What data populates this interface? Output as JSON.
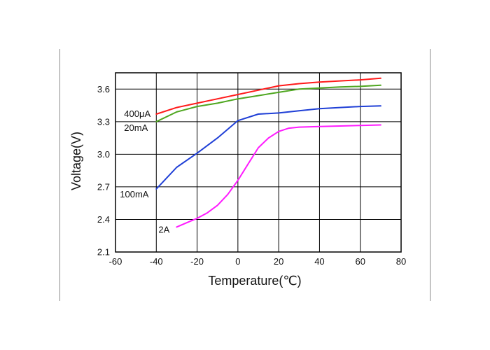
{
  "chart_data": {
    "type": "line",
    "xlabel": "Temperature(℃)",
    "ylabel": "Voltage(V)",
    "xlim": [
      -60,
      80
    ],
    "ylim": [
      2.1,
      3.75
    ],
    "xticks": [
      -60,
      -40,
      -20,
      0,
      20,
      40,
      60,
      80
    ],
    "yticks": [
      2.1,
      2.4,
      2.7,
      3.0,
      3.3,
      3.6
    ],
    "ytick_labels": [
      "2.1",
      "2.4",
      "2.7",
      "3.0",
      "3.3",
      "3.6"
    ],
    "grid": true,
    "series": [
      {
        "name": "400μA",
        "color": "#ff1a1a",
        "x": [
          -40,
          -30,
          -20,
          -10,
          0,
          10,
          20,
          30,
          40,
          50,
          60,
          70
        ],
        "y": [
          3.37,
          3.43,
          3.47,
          3.51,
          3.55,
          3.59,
          3.63,
          3.65,
          3.665,
          3.675,
          3.685,
          3.7
        ]
      },
      {
        "name": "20mA",
        "color": "#4ea61f",
        "x": [
          -40,
          -30,
          -20,
          -10,
          0,
          10,
          20,
          30,
          40,
          50,
          60,
          70
        ],
        "y": [
          3.3,
          3.39,
          3.44,
          3.47,
          3.51,
          3.54,
          3.57,
          3.6,
          3.61,
          3.62,
          3.625,
          3.635
        ]
      },
      {
        "name": "100mA",
        "color": "#1f3fd6",
        "x": [
          -40,
          -30,
          -20,
          -10,
          0,
          10,
          20,
          30,
          40,
          50,
          60,
          70
        ],
        "y": [
          2.68,
          2.88,
          3.01,
          3.15,
          3.31,
          3.37,
          3.38,
          3.4,
          3.42,
          3.43,
          3.44,
          3.445
        ]
      },
      {
        "name": "2A",
        "color": "#ff1aff",
        "x": [
          -30,
          -25,
          -20,
          -15,
          -10,
          -5,
          0,
          5,
          10,
          15,
          20,
          25,
          30,
          40,
          50,
          60,
          70
        ],
        "y": [
          2.33,
          2.37,
          2.41,
          2.46,
          2.53,
          2.63,
          2.76,
          2.91,
          3.06,
          3.15,
          3.21,
          3.24,
          3.25,
          3.255,
          3.26,
          3.265,
          3.27
        ]
      }
    ]
  }
}
